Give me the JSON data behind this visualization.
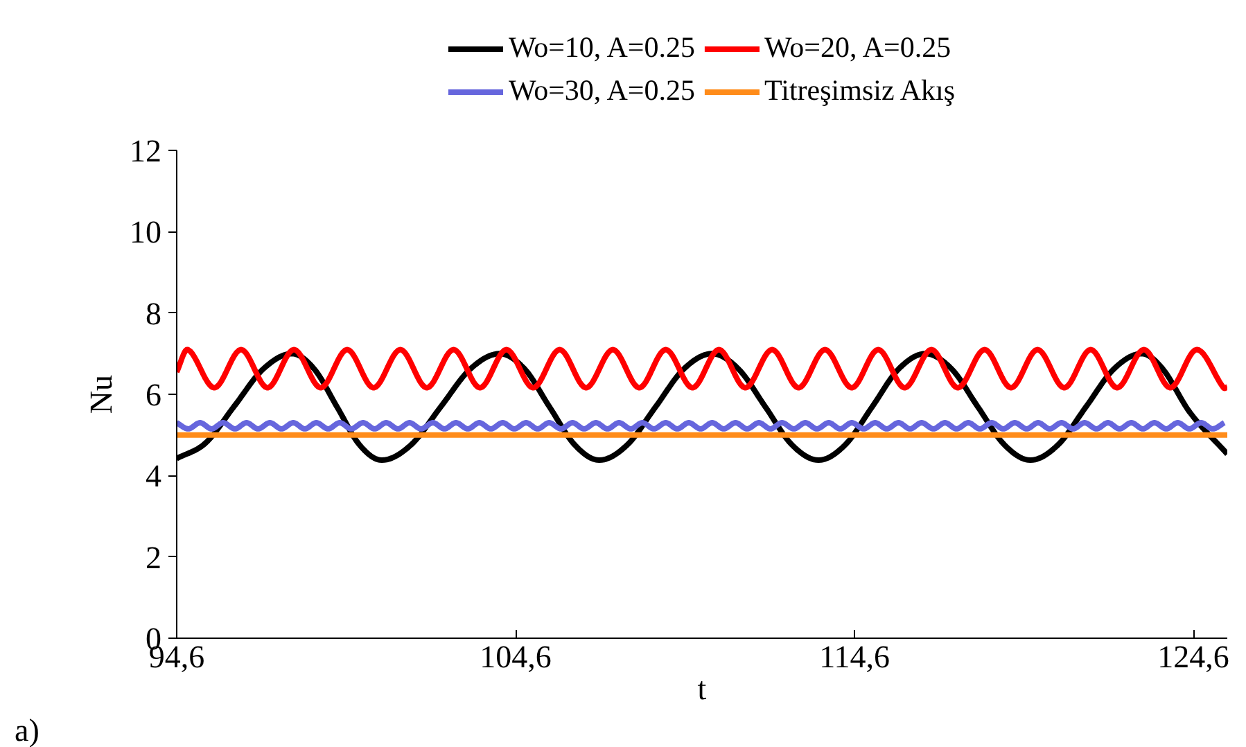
{
  "chart_data": {
    "type": "line",
    "xlabel": "t",
    "ylabel": "Nu",
    "xlim": [
      94.6,
      125.6
    ],
    "xticks": [
      {
        "value": 94.6,
        "label": "94,6"
      },
      {
        "value": 104.6,
        "label": "104,6"
      },
      {
        "value": 114.6,
        "label": "114,6"
      },
      {
        "value": 124.6,
        "label": "124,6"
      }
    ],
    "ylim": [
      0,
      12
    ],
    "yticks": [
      0,
      2,
      4,
      6,
      8,
      10,
      12
    ],
    "grid": false,
    "legend": "top",
    "marker": "none",
    "line_style": "solid",
    "annotations": [
      "a)"
    ],
    "series": [
      {
        "name": "Wo=10, A=0.25",
        "color": "#000000",
        "x": [
          94.6,
          95.45,
          96.3,
          97.15,
          98.0,
          98.66,
          99.33,
          99.99,
          100.65,
          101.52,
          102.39,
          103.26,
          104.13,
          104.87,
          105.6,
          106.34,
          107.07,
          107.9,
          108.73,
          109.56,
          110.39,
          111.18,
          111.97,
          112.75,
          113.54,
          114.33,
          115.12,
          115.9,
          116.69,
          117.47,
          118.24,
          119.02,
          119.79,
          120.61,
          121.43,
          122.25,
          123.07,
          123.7,
          124.5,
          125.6
        ],
        "values": [
          4.42,
          4.8,
          5.71,
          6.62,
          7.0,
          6.62,
          5.69,
          4.76,
          4.38,
          4.76,
          5.69,
          6.62,
          7.0,
          6.62,
          5.69,
          4.76,
          4.38,
          4.76,
          5.69,
          6.62,
          7.0,
          6.62,
          5.69,
          4.76,
          4.38,
          4.76,
          5.69,
          6.62,
          7.0,
          6.62,
          5.69,
          4.76,
          4.38,
          4.76,
          5.69,
          6.62,
          7.0,
          6.62,
          5.55,
          4.53
        ]
      },
      {
        "name": "Wo=20, A=0.25",
        "color": "#ff0000",
        "x": [
          94.6,
          94.93,
          95.71,
          96.5,
          97.28,
          98.06,
          98.85,
          99.63,
          100.41,
          101.2,
          101.98,
          102.77,
          103.55,
          104.33,
          105.12,
          105.9,
          106.68,
          107.47,
          108.25,
          109.03,
          109.82,
          110.6,
          111.38,
          112.17,
          112.95,
          113.73,
          114.52,
          115.3,
          116.08,
          116.87,
          117.65,
          118.44,
          119.22,
          120.0,
          120.79,
          121.57,
          122.35,
          123.14,
          123.92,
          124.7,
          125.49,
          125.6
        ],
        "values": [
          6.55,
          7.1,
          6.16,
          7.1,
          6.16,
          7.1,
          6.16,
          7.1,
          6.16,
          7.1,
          6.16,
          7.1,
          6.16,
          7.1,
          6.16,
          7.1,
          6.16,
          7.1,
          6.16,
          7.1,
          6.16,
          7.1,
          6.16,
          7.1,
          6.16,
          7.1,
          6.16,
          7.1,
          6.16,
          7.1,
          6.16,
          7.1,
          6.16,
          7.1,
          6.16,
          7.1,
          6.16,
          7.1,
          6.16,
          7.1,
          6.16,
          6.18
        ]
      },
      {
        "name": "Wo=30, A=0.25",
        "color": "#6666dd",
        "x": [
          94.6,
          94.94,
          95.29,
          95.63,
          95.97,
          96.32,
          96.66,
          97.0,
          97.35,
          97.69,
          98.04,
          98.38,
          98.72,
          99.07,
          99.41,
          99.75,
          100.1,
          100.44,
          100.78,
          101.13,
          101.47,
          101.81,
          102.16,
          102.5,
          102.84,
          103.19,
          103.53,
          103.87,
          104.22,
          104.56,
          104.91,
          105.25,
          105.59,
          105.94,
          106.28,
          106.62,
          106.97,
          107.31,
          107.65,
          108.0,
          108.34,
          108.68,
          109.03,
          109.37,
          109.71,
          110.06,
          110.4,
          110.74,
          111.09,
          111.43,
          111.78,
          112.12,
          112.46,
          112.81,
          113.15,
          113.49,
          113.84,
          114.18,
          114.52,
          114.87,
          115.21,
          115.55,
          115.9,
          116.24,
          116.58,
          116.93,
          117.27,
          117.61,
          117.96,
          118.3,
          118.65,
          118.99,
          119.33,
          119.68,
          120.02,
          120.36,
          120.71,
          121.05,
          121.39,
          121.74,
          122.08,
          122.42,
          122.77,
          123.11,
          123.45,
          123.8,
          124.14,
          124.48,
          124.83,
          125.17,
          125.51
        ],
        "values": [
          5.3,
          5.15,
          5.3,
          5.15,
          5.3,
          5.15,
          5.3,
          5.15,
          5.3,
          5.15,
          5.3,
          5.15,
          5.3,
          5.15,
          5.3,
          5.15,
          5.3,
          5.15,
          5.3,
          5.15,
          5.3,
          5.15,
          5.3,
          5.15,
          5.3,
          5.15,
          5.3,
          5.15,
          5.3,
          5.15,
          5.3,
          5.15,
          5.3,
          5.15,
          5.3,
          5.15,
          5.3,
          5.15,
          5.3,
          5.15,
          5.3,
          5.15,
          5.3,
          5.15,
          5.3,
          5.15,
          5.3,
          5.15,
          5.3,
          5.15,
          5.3,
          5.15,
          5.3,
          5.15,
          5.3,
          5.15,
          5.3,
          5.15,
          5.3,
          5.15,
          5.3,
          5.15,
          5.3,
          5.15,
          5.3,
          5.15,
          5.3,
          5.15,
          5.3,
          5.15,
          5.3,
          5.15,
          5.3,
          5.15,
          5.3,
          5.15,
          5.3,
          5.15,
          5.3,
          5.15,
          5.3,
          5.15,
          5.3,
          5.15,
          5.3,
          5.15,
          5.3,
          5.15,
          5.3,
          5.15,
          5.3
        ]
      },
      {
        "name": "Titreşimsiz Akış",
        "color": "#ff8c1a",
        "x": [
          94.6,
          125.6
        ],
        "values": [
          5.0,
          5.0
        ]
      }
    ]
  }
}
